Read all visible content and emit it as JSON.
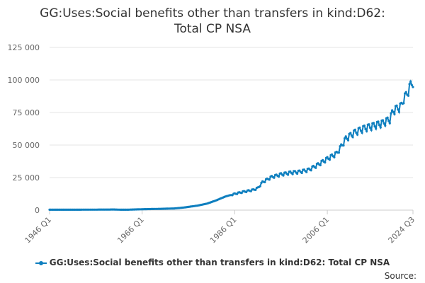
{
  "chart_data": {
    "type": "line",
    "title_lines": [
      "GG:Uses:Social benefits other than transfers in kind:D62:",
      "Total CP NSA"
    ],
    "xlabel": "",
    "ylabel": "",
    "x_tick_labels": [
      "1946 Q1",
      "1966 Q1",
      "1986 Q1",
      "2006 Q1",
      "2024 Q3"
    ],
    "x_tick_years": [
      1946.0,
      1966.0,
      1986.0,
      2006.0,
      2024.5
    ],
    "x_range": [
      1946.0,
      2024.5
    ],
    "y_tick_labels": [
      "0",
      "25 000",
      "50 000",
      "75 000",
      "100 000",
      "125 000"
    ],
    "y_ticks": [
      0,
      25000,
      50000,
      75000,
      100000,
      125000
    ],
    "ylim": [
      0,
      125000
    ],
    "grid": true,
    "legend_position": "bottom",
    "source_label": "Source:",
    "series": [
      {
        "name": "GG:Uses:Social benefits other than transfers in kind:D62: Total CP NSA",
        "color": "#0f7fbf",
        "anchors": [
          [
            1946.0,
            300
          ],
          [
            1950.0,
            320
          ],
          [
            1955.0,
            380
          ],
          [
            1960.0,
            480
          ],
          [
            1961.5,
            300
          ],
          [
            1963.0,
            350
          ],
          [
            1966.0,
            700
          ],
          [
            1970.0,
            1000
          ],
          [
            1973.0,
            1300
          ],
          [
            1975.0,
            2000
          ],
          [
            1978.0,
            3500
          ],
          [
            1980.0,
            5000
          ],
          [
            1982.0,
            7500
          ],
          [
            1984.0,
            10500
          ],
          [
            1986.0,
            12500
          ],
          [
            1988.0,
            14200
          ],
          [
            1990.0,
            15500
          ],
          [
            1991.0,
            17000
          ],
          [
            1992.0,
            21500
          ],
          [
            1994.0,
            25500
          ],
          [
            1996.0,
            27500
          ],
          [
            1998.0,
            28800
          ],
          [
            2000.0,
            29500
          ],
          [
            2002.0,
            31000
          ],
          [
            2004.0,
            35000
          ],
          [
            2006.0,
            39500
          ],
          [
            2008.0,
            43500
          ],
          [
            2009.0,
            49000
          ],
          [
            2010.0,
            55000
          ],
          [
            2012.0,
            60000
          ],
          [
            2014.0,
            63000
          ],
          [
            2016.0,
            65000
          ],
          [
            2018.0,
            67000
          ],
          [
            2019.5,
            70000
          ],
          [
            2020.3,
            77000
          ],
          [
            2021.0,
            78000
          ],
          [
            2022.0,
            80000
          ],
          [
            2022.5,
            86000
          ],
          [
            2023.0,
            88000
          ],
          [
            2023.5,
            92000
          ],
          [
            2024.0,
            96000
          ],
          [
            2024.5,
            99000
          ]
        ]
      }
    ]
  }
}
